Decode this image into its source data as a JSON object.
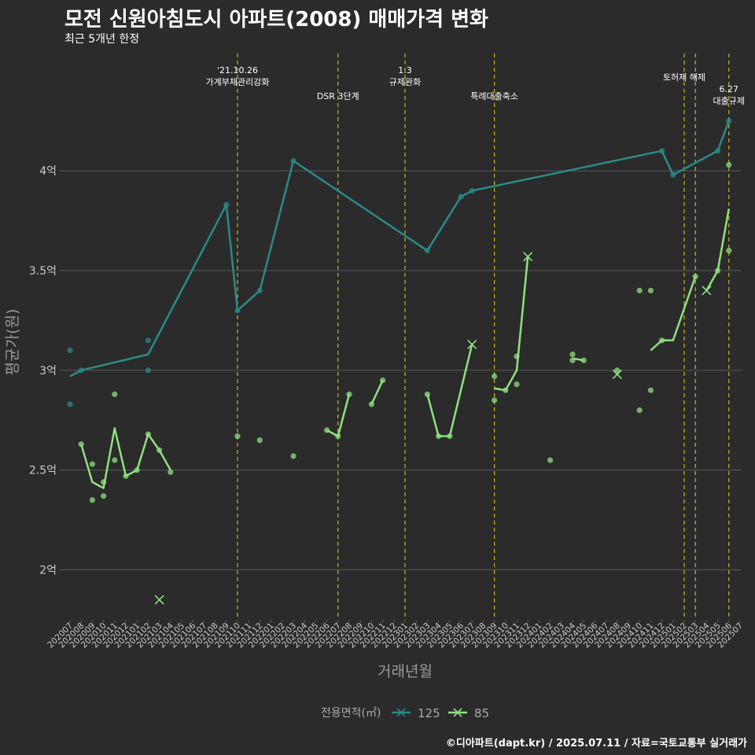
{
  "title": "모전 신원아침도시 아파트(2008) 매매가격 변화",
  "subtitle": "최근 5개년 한정",
  "credit": "©디아파트(dapt.kr) / 2025.07.11 / 자료=국토교통부 실거래가",
  "colors": {
    "background": "#2b2b2b",
    "grid": "#5a5a5a",
    "s125": "#2a8a88",
    "s85": "#90e080",
    "vline": "#d8d820",
    "axis_text": "#cccccc",
    "axis_title": "#9a9a9a"
  },
  "chart_data": {
    "type": "line",
    "xlabel": "거래년월",
    "ylabel": "평균가(원)",
    "ylim": [
      1.75,
      4.6
    ],
    "y_ticks": [
      {
        "value": 2.0,
        "label": "2억"
      },
      {
        "value": 2.5,
        "label": "2.5억"
      },
      {
        "value": 3.0,
        "label": "3억"
      },
      {
        "value": 3.5,
        "label": "3.5억"
      },
      {
        "value": 4.0,
        "label": "4억"
      }
    ],
    "x_categories": [
      "202007",
      "202008",
      "202009",
      "202010",
      "202011",
      "202012",
      "202101",
      "202102",
      "202103",
      "202104",
      "202105",
      "202106",
      "202107",
      "202108",
      "202109",
      "202110",
      "202111",
      "202112",
      "202201",
      "202202",
      "202203",
      "202204",
      "202205",
      "202206",
      "202207",
      "202208",
      "202209",
      "202210",
      "202211",
      "202212",
      "202301",
      "202302",
      "202303",
      "202304",
      "202305",
      "202306",
      "202307",
      "202308",
      "202309",
      "202310",
      "202311",
      "202312",
      "202401",
      "202402",
      "202403",
      "202404",
      "202405",
      "202406",
      "202407",
      "202408",
      "202409",
      "202410",
      "202411",
      "202412",
      "202501",
      "202502",
      "202503",
      "202504",
      "202505",
      "202506",
      "202507"
    ],
    "legend": {
      "title": "전용면적(㎡)",
      "position": "bottom"
    },
    "series": [
      {
        "name": "125",
        "line": [
          [
            0,
            2.97
          ],
          [
            1,
            3.0
          ],
          [
            7,
            3.08
          ],
          [
            14,
            3.83
          ],
          [
            15,
            3.3
          ],
          [
            17,
            3.4
          ],
          [
            20,
            4.05
          ],
          [
            32,
            3.6
          ],
          [
            35,
            3.87
          ],
          [
            36,
            3.9
          ],
          [
            53,
            4.1
          ],
          [
            54,
            3.98
          ],
          [
            58,
            4.1
          ],
          [
            59,
            4.25
          ]
        ],
        "points": [
          [
            0,
            3.1
          ],
          [
            0,
            2.83
          ],
          [
            1,
            3.0
          ],
          [
            7,
            3.15
          ],
          [
            7,
            3.0
          ],
          [
            14,
            3.83
          ],
          [
            15,
            3.3
          ],
          [
            17,
            3.4
          ],
          [
            20,
            4.05
          ],
          [
            32,
            3.6
          ],
          [
            35,
            3.87
          ],
          [
            36,
            3.9
          ],
          [
            53,
            4.1
          ],
          [
            54,
            3.98
          ],
          [
            58,
            4.1
          ],
          [
            59,
            4.25
          ]
        ],
        "cross": []
      },
      {
        "name": "85",
        "line_segments": [
          [
            [
              1,
              2.63
            ],
            [
              2,
              2.44
            ],
            [
              3,
              2.41
            ],
            [
              4,
              2.71
            ],
            [
              5,
              2.47
            ],
            [
              6,
              2.5
            ],
            [
              7,
              2.68
            ],
            [
              8,
              2.6
            ],
            [
              9,
              2.5
            ]
          ],
          [
            [
              23,
              2.7
            ],
            [
              24,
              2.67
            ],
            [
              25,
              2.88
            ]
          ],
          [
            [
              27,
              2.83
            ],
            [
              28,
              2.95
            ]
          ],
          [
            [
              32,
              2.88
            ],
            [
              33,
              2.67
            ],
            [
              34,
              2.67
            ],
            [
              36,
              3.13
            ]
          ],
          [
            [
              38,
              2.91
            ],
            [
              39,
              2.9
            ],
            [
              40,
              3.0
            ],
            [
              41,
              3.57
            ]
          ],
          [
            [
              45,
              3.06
            ],
            [
              46,
              3.05
            ]
          ],
          [
            [
              52,
              3.1
            ],
            [
              53,
              3.15
            ],
            [
              54,
              3.15
            ],
            [
              56,
              3.47
            ]
          ],
          [
            [
              57,
              3.4
            ],
            [
              58,
              3.5
            ],
            [
              59,
              3.81
            ]
          ]
        ],
        "points": [
          [
            1,
            2.63
          ],
          [
            2,
            2.53
          ],
          [
            2,
            2.35
          ],
          [
            3,
            2.44
          ],
          [
            3,
            2.37
          ],
          [
            4,
            2.88
          ],
          [
            4,
            2.55
          ],
          [
            5,
            2.47
          ],
          [
            6,
            2.5
          ],
          [
            7,
            2.68
          ],
          [
            8,
            2.6
          ],
          [
            9,
            2.49
          ],
          [
            15,
            2.67
          ],
          [
            17,
            2.65
          ],
          [
            20,
            2.57
          ],
          [
            23,
            2.7
          ],
          [
            24,
            2.67
          ],
          [
            25,
            2.88
          ],
          [
            27,
            2.83
          ],
          [
            28,
            2.95
          ],
          [
            32,
            2.88
          ],
          [
            33,
            2.67
          ],
          [
            34,
            2.67
          ],
          [
            38,
            2.97
          ],
          [
            38,
            2.85
          ],
          [
            39,
            2.9
          ],
          [
            40,
            3.07
          ],
          [
            40,
            2.93
          ],
          [
            43,
            2.55
          ],
          [
            45,
            3.08
          ],
          [
            45,
            3.05
          ],
          [
            46,
            3.05
          ],
          [
            49,
            3.0
          ],
          [
            51,
            3.4
          ],
          [
            51,
            2.8
          ],
          [
            52,
            3.4
          ],
          [
            52,
            2.9
          ],
          [
            53,
            3.15
          ],
          [
            56,
            3.47
          ],
          [
            58,
            3.5
          ],
          [
            59,
            4.03
          ],
          [
            59,
            3.6
          ]
        ],
        "cross": [
          [
            8,
            1.85
          ],
          [
            36,
            3.13
          ],
          [
            41,
            3.57
          ],
          [
            49,
            2.98
          ],
          [
            57,
            3.4
          ]
        ]
      }
    ],
    "annotations": [
      {
        "x": 15,
        "lines": [
          "'21.10.26",
          "가계부채관리강화"
        ],
        "level": "high"
      },
      {
        "x": 24,
        "lines": [
          "DSR 3단계"
        ],
        "level": "low"
      },
      {
        "x": 30,
        "lines": [
          "1.3",
          "규제완화"
        ],
        "level": "high"
      },
      {
        "x": 38,
        "lines": [
          "특례대출축소"
        ],
        "level": "low"
      },
      {
        "x": 55,
        "lines": [
          "토허제 해제"
        ],
        "level": "mid"
      },
      {
        "x": 56,
        "lines": [],
        "level": "mid"
      },
      {
        "x": 59,
        "lines": [
          "6.27",
          "대출규제"
        ],
        "level": "low2"
      }
    ]
  }
}
